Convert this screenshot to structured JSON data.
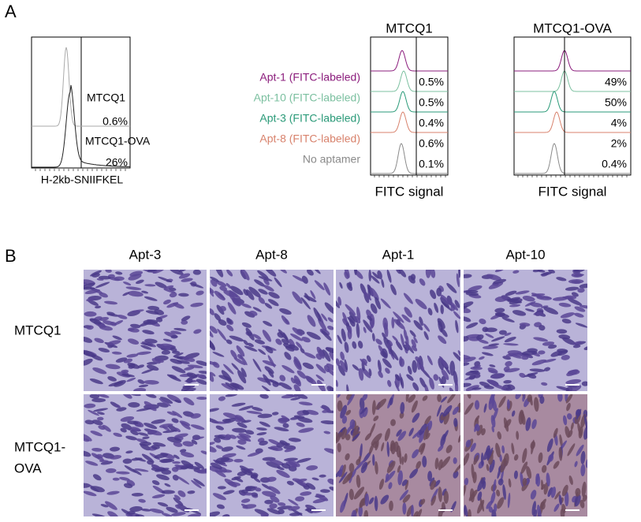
{
  "panel_a": {
    "label": "A",
    "left_plot": {
      "labels": [
        "MTCQ1",
        "MTCQ1-OVA"
      ],
      "percentages": [
        "0.6%",
        "26%"
      ],
      "x_label": "H-2kb-SNIIFKEL"
    },
    "samples": [
      {
        "name": "Apt-1 (FITC-labeled)",
        "color": "#8b1c7c"
      },
      {
        "name": "Apt-10 (FITC-labeled)",
        "color": "#7cc0a0"
      },
      {
        "name": "Apt-3 (FITC-labeled)",
        "color": "#2a9a78"
      },
      {
        "name": "Apt-8 (FITC-labeled)",
        "color": "#d8826c"
      },
      {
        "name": "No aptamer",
        "color": "#8a8a8a"
      }
    ],
    "plots": [
      {
        "title": "MTCQ1",
        "percentages": [
          "0.5%",
          "0.5%",
          "0.4%",
          "0.6%",
          "0.1%"
        ],
        "x_label": "FITC signal"
      },
      {
        "title": "MTCQ1-OVA",
        "percentages": [
          "49%",
          "50%",
          "4%",
          "2%",
          "0.4%"
        ],
        "x_label": "FITC signal"
      }
    ]
  },
  "panel_b": {
    "label": "B",
    "columns": [
      "Apt-3",
      "Apt-8",
      "Apt-1",
      "Apt-10"
    ],
    "rows": [
      [
        "MTCQ1"
      ],
      [
        "MTCQ1-",
        "OVA"
      ]
    ]
  }
}
